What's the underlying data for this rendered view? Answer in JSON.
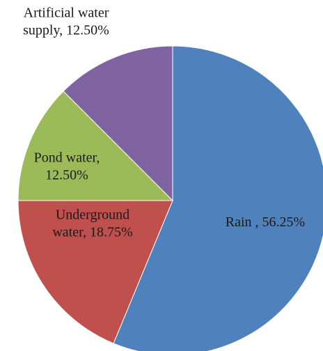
{
  "chart_data": {
    "type": "pie",
    "title": "",
    "start": "top",
    "direction": "clockwise",
    "legend": "none",
    "slices": [
      {
        "name": "Rain",
        "value": 56.25,
        "color": "#4f81bd",
        "label_lines": [
          "Rain , 56.25%"
        ]
      },
      {
        "name": "Underground water",
        "value": 18.75,
        "color": "#c0504d",
        "label_lines": [
          "Underground",
          "water, 18.75%"
        ]
      },
      {
        "name": "Pond water",
        "value": 12.5,
        "color": "#9bbb59",
        "label_lines": [
          "Pond water,",
          "12.50%"
        ]
      },
      {
        "name": "Artificial water supply",
        "value": 12.5,
        "color": "#8064a2",
        "label_lines": [
          "Artificial water",
          "supply, 12.50%"
        ]
      }
    ]
  }
}
